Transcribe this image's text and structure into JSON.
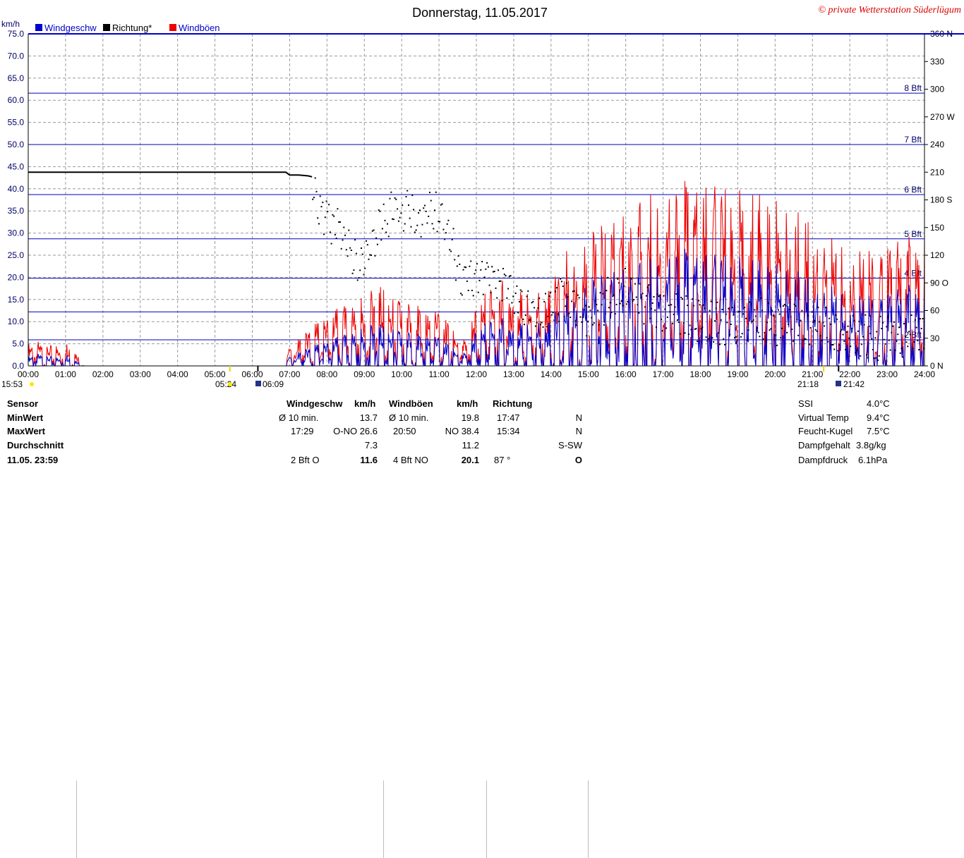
{
  "header": {
    "title": "Donnerstag, 11.05.2017",
    "credit": "© private Wetterstation Süderlügum",
    "left_unit": "km/h"
  },
  "colors": {
    "windgeschw": "#0000cc",
    "richtung": "#000000",
    "windboeen": "#ee0000",
    "bft_lines": "#0000bb",
    "grid": "#9a9a9a"
  },
  "chart_data": {
    "type": "line",
    "title": "Donnerstag, 11.05.2017",
    "xlabel": "",
    "ylabel": "km/h",
    "xlim": [
      "00:00",
      "24:00"
    ],
    "ylim": [
      0,
      75
    ],
    "y2lim": [
      0,
      360
    ],
    "x_ticks": [
      "00:00",
      "01:00",
      "02:00",
      "03:00",
      "04:00",
      "05:00",
      "06:00",
      "07:00",
      "08:00",
      "09:00",
      "10:00",
      "11:00",
      "12:00",
      "13:00",
      "14:00",
      "15:00",
      "16:00",
      "17:00",
      "18:00",
      "19:00",
      "20:00",
      "21:00",
      "22:00",
      "23:00",
      "24:00"
    ],
    "y_ticks": [
      "0.0",
      "5.0",
      "10.0",
      "15.0",
      "20.0",
      "25.0",
      "30.0",
      "35.0",
      "40.0",
      "45.0",
      "50.0",
      "55.0",
      "60.0",
      "65.0",
      "70.0",
      "75.0"
    ],
    "y2_ticks": [
      "0 N",
      "30",
      "60",
      "90 O",
      "120",
      "150",
      "180 S",
      "210",
      "240",
      "270 W",
      "300",
      "330",
      "360 N"
    ],
    "grid": true,
    "legend_position": "top-left",
    "legend": [
      "Windgeschw",
      "Richtung*",
      "Windböen"
    ],
    "beaufort_lines": [
      {
        "label": "2 Bft",
        "value": 5.9
      },
      {
        "label": "",
        "value": 12.2
      },
      {
        "label": "4 Bft",
        "value": 19.8
      },
      {
        "label": "5 Bft",
        "value": 28.7
      },
      {
        "label": "6 Bft",
        "value": 38.7
      },
      {
        "label": "7 Bft",
        "value": 50
      },
      {
        "label": "8 Bft",
        "value": 61.6
      }
    ],
    "sun_markers": [
      {
        "time": "05:24",
        "kind": "sunrise-time",
        "hour": 5.4
      },
      {
        "time": "06:09",
        "kind": "moonrise-time",
        "hour": 6.15
      },
      {
        "time": "21:18",
        "kind": "sunset-time",
        "hour": 21.3
      },
      {
        "time": "21:42",
        "kind": "moonset-time",
        "hour": 21.7
      },
      {
        "time": "15:53",
        "kind": "moon-time",
        "hour": 0
      }
    ],
    "series": [
      {
        "name": "Windböen",
        "x_hours": [
          0,
          0.25,
          0.5,
          0.75,
          1.0,
          1.25,
          1.5,
          6.9,
          7.0,
          7.25,
          7.5,
          7.75,
          8.0,
          8.25,
          8.5,
          8.75,
          9.0,
          9.25,
          9.5,
          9.75,
          10.0,
          10.25,
          10.5,
          10.75,
          11.0,
          11.25,
          11.5,
          11.75,
          12.0,
          12.25,
          12.5,
          12.75,
          13.0,
          13.25,
          13.5,
          13.75,
          14.0,
          14.25,
          14.5,
          14.75,
          15.0,
          15.25,
          15.5,
          15.75,
          16.0,
          16.25,
          16.5,
          16.75,
          17.0,
          17.25,
          17.5,
          17.75,
          18.0,
          18.25,
          18.5,
          18.75,
          19.0,
          19.25,
          19.5,
          19.75,
          20.0,
          20.25,
          20.5,
          20.75,
          21.0,
          21.25,
          21.5,
          21.75,
          22.0,
          22.25,
          22.5,
          22.75,
          23.0,
          23.25,
          23.5,
          23.75,
          24.0
        ],
        "values": [
          3.5,
          4,
          3,
          3.5,
          4,
          2.5,
          0,
          0,
          4,
          5,
          6,
          7,
          8,
          9,
          9.5,
          10,
          11,
          12,
          12.5,
          11,
          10.5,
          10,
          9.5,
          9,
          8.5,
          7,
          5,
          4,
          10,
          12,
          13,
          13.5,
          12,
          11.5,
          11,
          12,
          13,
          16,
          19,
          19,
          20,
          22,
          23,
          22,
          25,
          26,
          27,
          28,
          28,
          28,
          29,
          29.5,
          29,
          29,
          29,
          28,
          27.5,
          27,
          27,
          26.5,
          26,
          25,
          24,
          24,
          22,
          21,
          20,
          20,
          19,
          18,
          18,
          18,
          19,
          19.5,
          20,
          20.5,
          21
        ]
      },
      {
        "name": "Windgeschw",
        "x_hours": [
          0,
          0.25,
          0.5,
          0.75,
          1.0,
          1.25,
          1.5,
          6.9,
          7.0,
          7.25,
          7.5,
          7.75,
          8.0,
          8.25,
          8.5,
          8.75,
          9.0,
          9.25,
          9.5,
          9.75,
          10.0,
          10.25,
          10.5,
          10.75,
          11.0,
          11.25,
          11.5,
          11.75,
          12.0,
          12.25,
          12.5,
          12.75,
          13.0,
          13.25,
          13.5,
          13.75,
          14.0,
          14.25,
          14.5,
          14.75,
          15.0,
          15.25,
          15.5,
          15.75,
          16.0,
          16.25,
          16.5,
          16.75,
          17.0,
          17.25,
          17.5,
          17.75,
          18.0,
          18.25,
          18.5,
          18.75,
          19.0,
          19.25,
          19.5,
          19.75,
          20.0,
          20.25,
          20.5,
          20.75,
          21.0,
          21.25,
          21.5,
          21.75,
          22.0,
          22.25,
          22.5,
          22.75,
          23.0,
          23.25,
          23.5,
          23.75,
          24.0
        ],
        "values": [
          1.5,
          2,
          1.5,
          1.5,
          2,
          1,
          0,
          0,
          2,
          2.5,
          3,
          3.5,
          4,
          4.5,
          5,
          5.5,
          6,
          6.5,
          6.5,
          6,
          5.5,
          5.5,
          5,
          5,
          4.5,
          3.5,
          2.5,
          2,
          6,
          7,
          7.5,
          7.5,
          7,
          6.5,
          6.5,
          7,
          7.5,
          10,
          12,
          12.5,
          13,
          14,
          15,
          14.5,
          16,
          16.5,
          17,
          17.5,
          18,
          18,
          18.5,
          18.5,
          18,
          18,
          18,
          17.5,
          17,
          17,
          16.5,
          16.5,
          16,
          15.5,
          15,
          14.5,
          13.5,
          13,
          12.5,
          12,
          11.5,
          11,
          11,
          11,
          11.5,
          12,
          12.5,
          13,
          13.5
        ]
      },
      {
        "name": "Richtung*",
        "x_hours": [
          0,
          1,
          2,
          3,
          4,
          5,
          6,
          6.9,
          7.0,
          7.25,
          7.5,
          7.6,
          7.75,
          8.0,
          8.25,
          8.5,
          8.75,
          9.0,
          9.25,
          9.5,
          9.75,
          10.0,
          10.25,
          10.5,
          10.75,
          11.0,
          11.25,
          11.5,
          11.75,
          12.0,
          12.25,
          12.5,
          12.75,
          13.0,
          13.25,
          13.5,
          13.75,
          14.0,
          14.25,
          14.5,
          14.75,
          15.0,
          15.25,
          15.5,
          15.75,
          16.0,
          16.25,
          16.5,
          16.75,
          17.0,
          17.25,
          17.5,
          17.75,
          18.0,
          18.25,
          18.5,
          18.75,
          19.0,
          19.25,
          19.5,
          19.75,
          20.0,
          20.25,
          20.5,
          20.75,
          21.0,
          21.25,
          21.5,
          21.75,
          22.0,
          22.25,
          22.5,
          22.75,
          23.0,
          23.25,
          23.5,
          23.75,
          24.0
        ],
        "values": [
          210,
          210,
          210,
          210,
          210,
          210,
          210,
          210,
          207,
          207,
          206,
          205,
          185,
          175,
          160,
          150,
          125,
          135,
          155,
          165,
          180,
          175,
          185,
          170,
          180,
          178,
          160,
          115,
          110,
          100,
          120,
          100,
          110,
          90,
          80,
          75,
          65,
          80,
          85,
          75,
          70,
          60,
          75,
          85,
          90,
          95,
          85,
          80,
          75,
          70,
          72,
          70,
          65,
          60,
          62,
          60,
          58,
          60,
          62,
          65,
          60,
          58,
          60,
          62,
          60,
          55,
          55,
          50,
          48,
          50,
          45,
          45,
          42,
          45,
          40,
          45,
          48,
          55
        ]
      }
    ]
  },
  "stats": {
    "sensor": {
      "heading": "Sensor",
      "rows": [
        "MinWert",
        "MaxWert",
        "Durchschnitt",
        "11.05. 23:59"
      ]
    },
    "windgeschw": {
      "heading": "Windgeschw",
      "unit": "km/h",
      "rows": [
        {
          "a": "Ø 10 min.",
          "b": "13.7"
        },
        {
          "a": "17:29",
          "b": "O-NO 26.6"
        },
        {
          "a": "",
          "b": "7.3"
        },
        {
          "a": "2 Bft O",
          "b": "11.6"
        }
      ]
    },
    "windboeen": {
      "heading": "Windböen",
      "unit": "km/h",
      "rows": [
        {
          "a": "Ø 10 min.",
          "b": "19.8"
        },
        {
          "a": "20:50",
          "b": "NO 38.4"
        },
        {
          "a": "",
          "b": "11.2"
        },
        {
          "a": "4 Bft NO",
          "b": "20.1"
        }
      ]
    },
    "richtung": {
      "heading": "Richtung",
      "rows": [
        {
          "a": "17:47",
          "b": "N"
        },
        {
          "a": "15:34",
          "b": "N"
        },
        {
          "a": "",
          "b": "S-SW"
        },
        {
          "a": "87 °",
          "b": "O"
        }
      ]
    },
    "extra": [
      {
        "label": "SSI",
        "value": "4.0°C"
      },
      {
        "label": "Virtual Temp",
        "value": "9.4°C"
      },
      {
        "label": "Feucht-Kugel",
        "value": "7.5°C"
      },
      {
        "label": "Dampfgehalt",
        "value": "3.8g/kg"
      },
      {
        "label": "Dampfdruck",
        "value": "6.1hPa"
      }
    ]
  }
}
